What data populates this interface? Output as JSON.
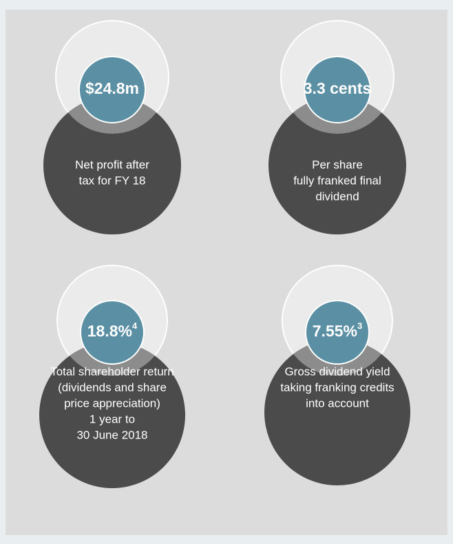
{
  "items": [
    {
      "value": "$24.8m",
      "note": null,
      "description": [
        "Net profit after",
        "tax for FY 18"
      ]
    },
    {
      "value": "3.3 cents",
      "note": null,
      "description": [
        "Per share",
        "fully franked final",
        "dividend"
      ]
    },
    {
      "value": "18.8%",
      "note": "4",
      "description": [
        "Total shareholder return",
        "(dividends and share",
        "price appreciation)",
        "1 year to",
        "30 June 2018"
      ]
    },
    {
      "value": "7.55%",
      "note": "3",
      "description": [
        "Gross dividend yield",
        "taking franking credits",
        "into account"
      ]
    }
  ]
}
